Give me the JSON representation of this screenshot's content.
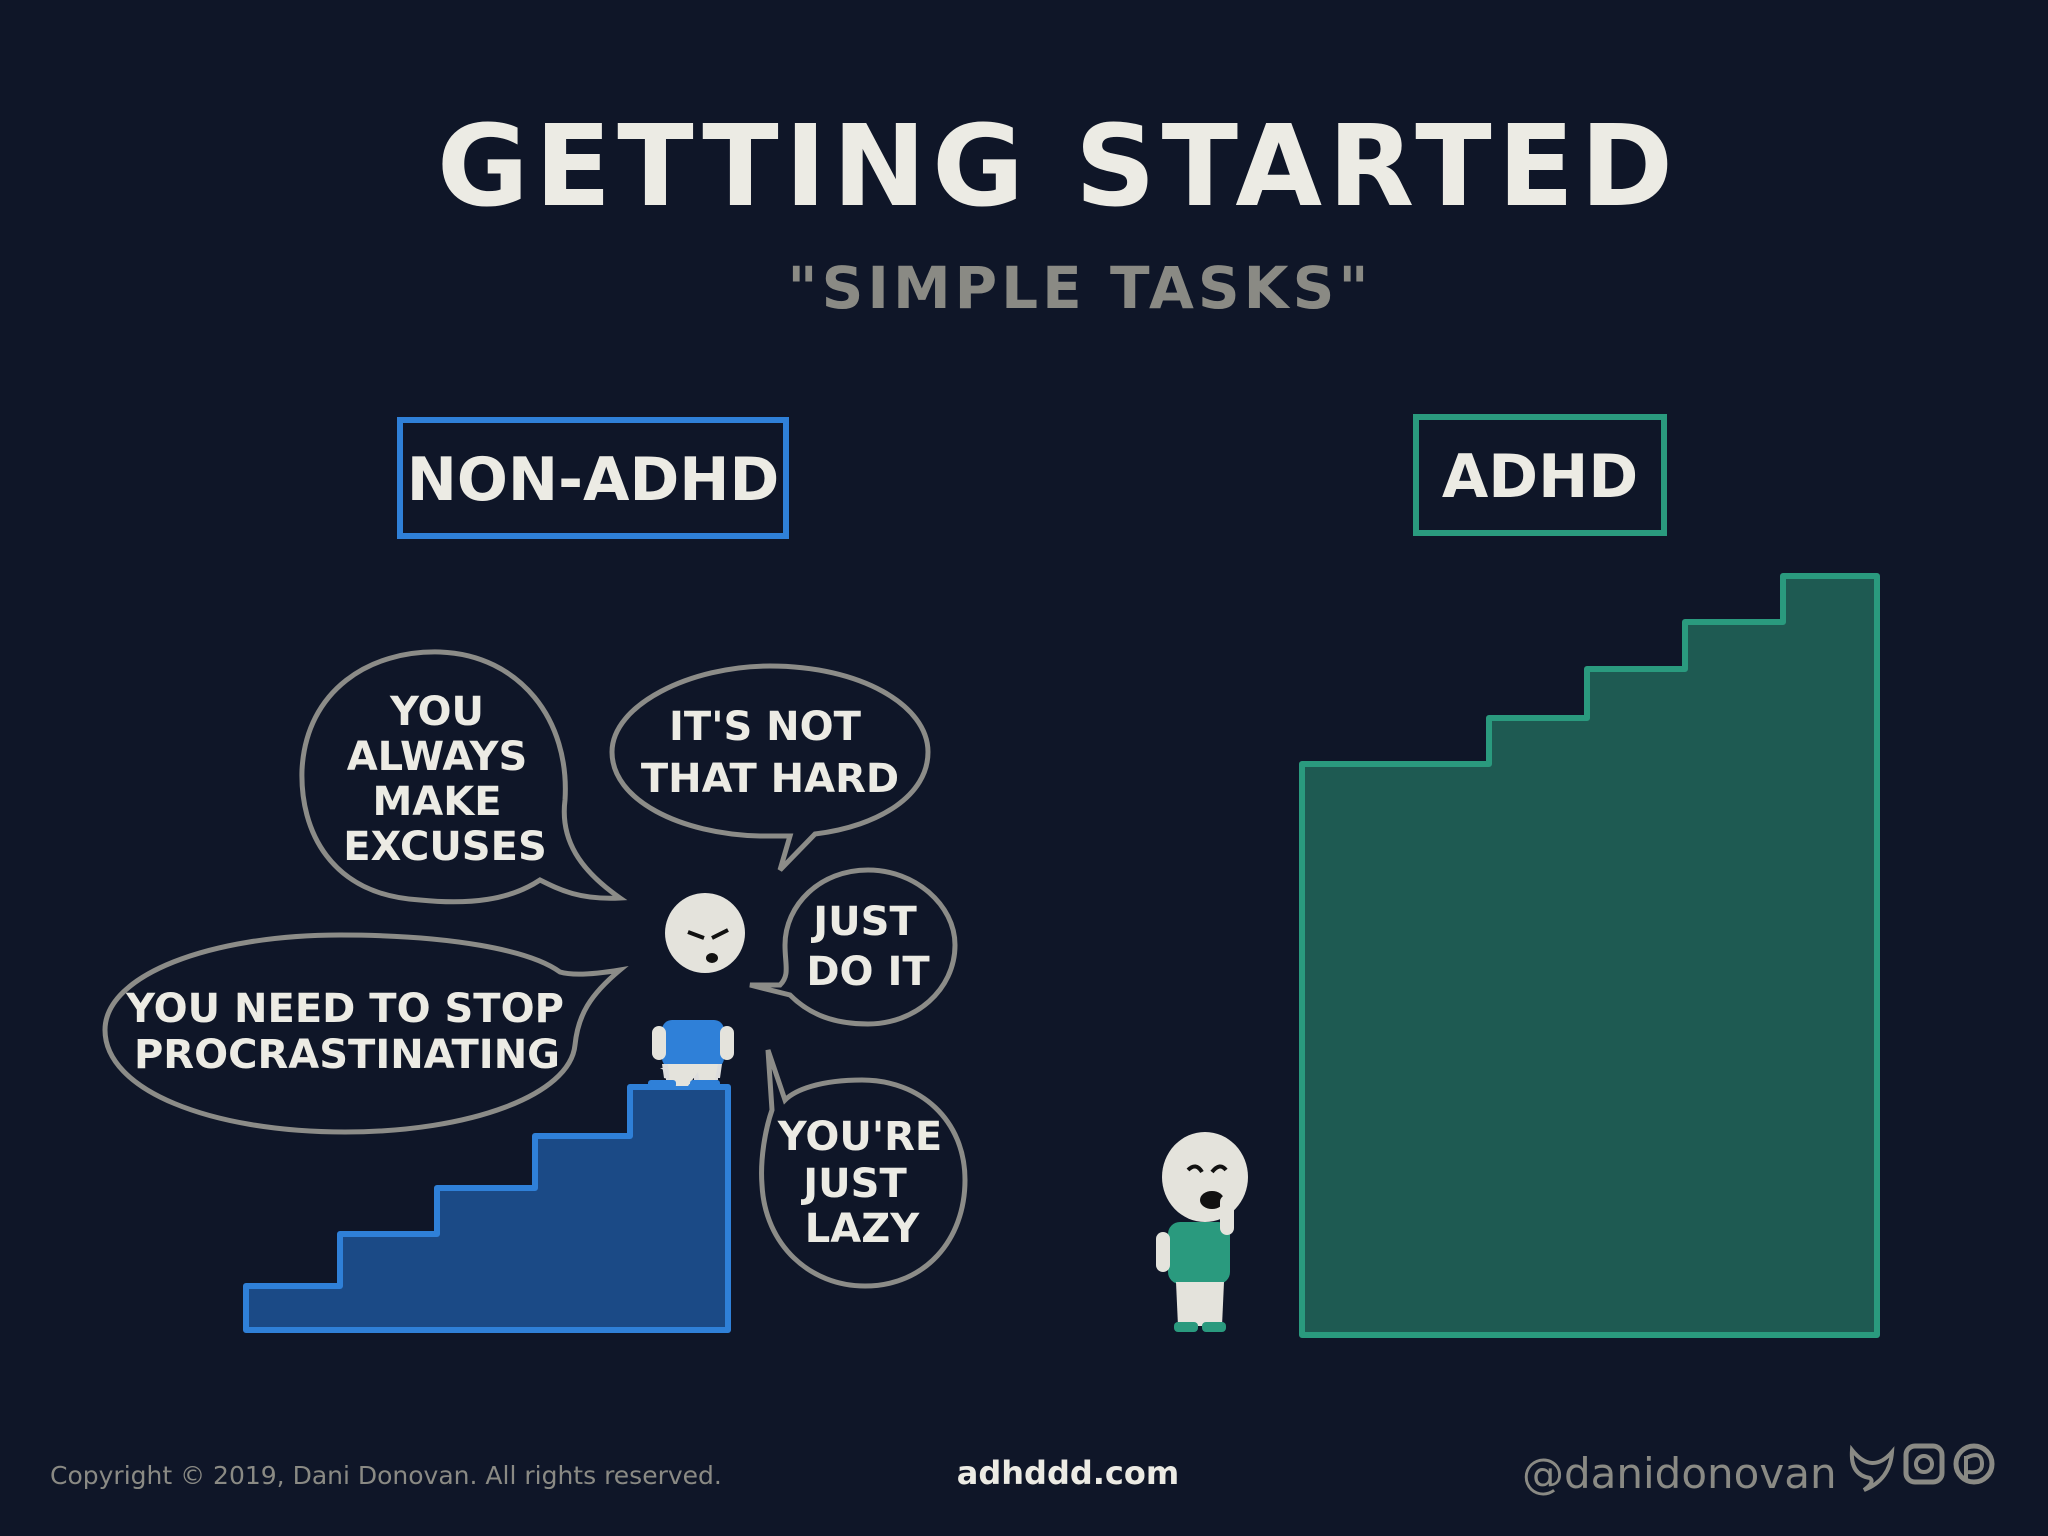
{
  "title": "GETTING STARTED",
  "subtitle": "\"SIMPLE TASKS\"",
  "left_panel": {
    "label": "NON-ADHD",
    "color": "#2f80d8",
    "bubbles": [
      {
        "lines": [
          "YOU",
          "ALWAYS",
          "MAKE",
          "EXCUSES"
        ]
      },
      {
        "lines": [
          "IT'S NOT",
          "THAT HARD"
        ]
      },
      {
        "lines": [
          "JUST",
          "DO IT"
        ]
      },
      {
        "lines": [
          "YOU NEED TO STOP",
          "PROCRASTINATING"
        ]
      },
      {
        "lines": [
          "YOU'RE",
          "JUST",
          "LAZY"
        ]
      }
    ]
  },
  "right_panel": {
    "label": "ADHD",
    "color": "#2a9a7e"
  },
  "footer": {
    "copyright": "Copyright © 2019, Dani Donovan. All rights reserved.",
    "website": "adhddd.com",
    "handle": "@danidonovan",
    "social_icons": [
      "twitter-icon",
      "instagram-icon",
      "patreon-icon"
    ]
  },
  "colors": {
    "background": "#0f1628",
    "text": "#ecebe4",
    "bubble_stroke": "#8c8c88"
  }
}
